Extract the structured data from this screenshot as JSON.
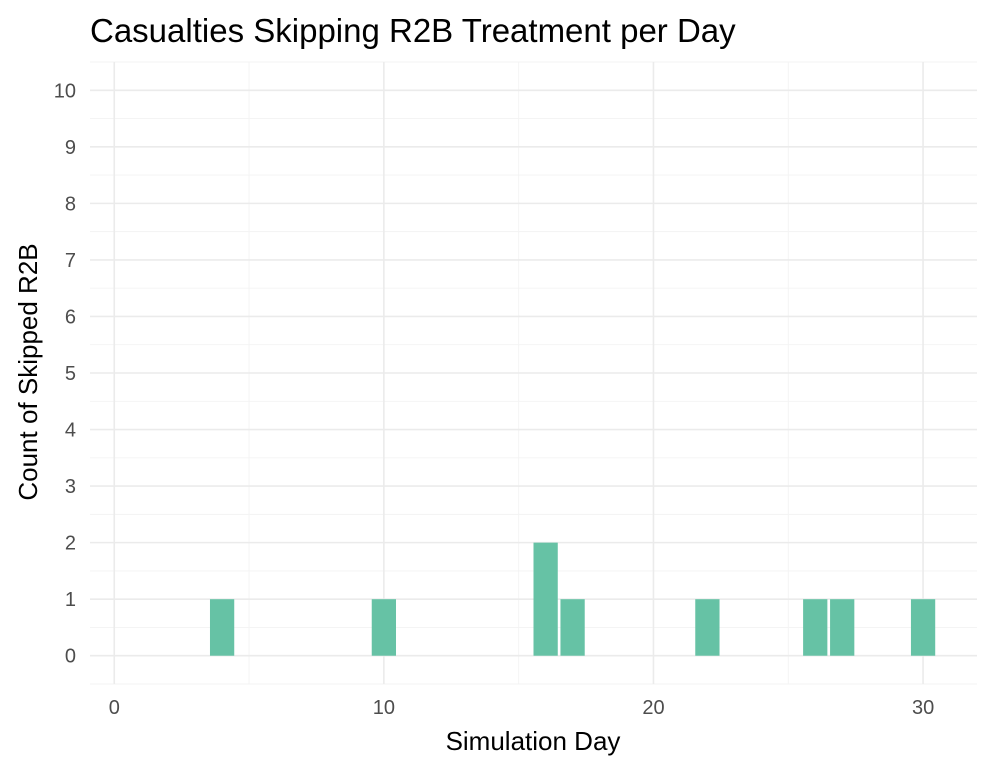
{
  "chart_data": {
    "type": "bar",
    "title": "Casualties Skipping R2B Treatment per Day",
    "xlabel": "Simulation Day",
    "ylabel": "Count of Skipped R2B",
    "x": [
      4,
      10,
      16,
      17,
      22,
      26,
      27,
      30
    ],
    "values": [
      1,
      1,
      2,
      1,
      1,
      1,
      1,
      1
    ],
    "bar_width": 0.9,
    "xlim": [
      -0.9,
      32.0
    ],
    "ylim": [
      -0.5,
      10.5
    ],
    "x_ticks": [
      0,
      10,
      20,
      30
    ],
    "y_ticks": [
      0,
      1,
      2,
      3,
      4,
      5,
      6,
      7,
      8,
      9,
      10
    ],
    "bar_color": "#66c2a5",
    "grid": true
  }
}
